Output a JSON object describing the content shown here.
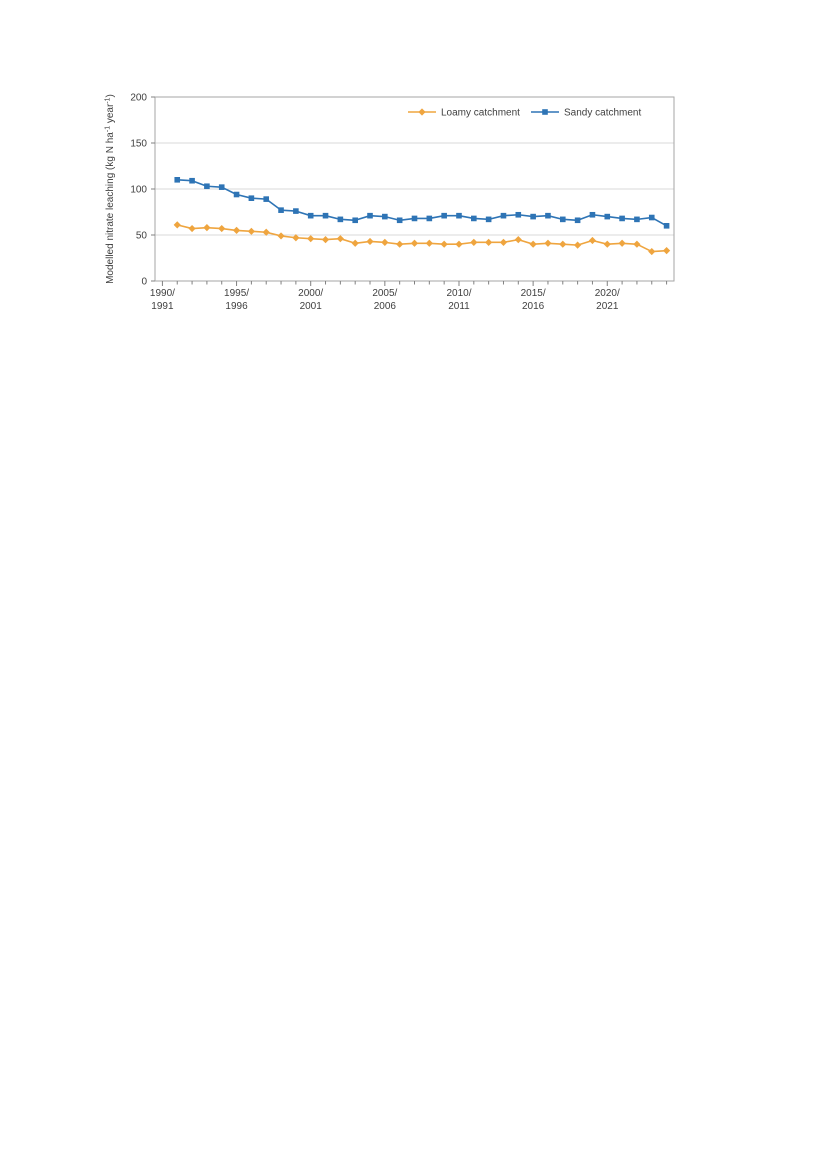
{
  "page": {
    "background": "#ffffff"
  },
  "chart_data": {
    "type": "line",
    "title": "",
    "ylabel": "Modelled nitrate leaching (kg N ha⁻¹ year⁻¹)",
    "xlabel": "",
    "ylim": [
      0,
      200
    ],
    "yticks": [
      0,
      50,
      100,
      150,
      200
    ],
    "gridlines_y": [
      50,
      100,
      150
    ],
    "grid": "horizontal-only",
    "legend_position": "inside-top-center-right",
    "x_axis": {
      "domain_years": [
        1989.5,
        2024.5
      ],
      "minor_ticks_start": 1990,
      "minor_ticks_end": 2024,
      "major_ticks": [
        {
          "year": 1990,
          "label_line1": "1990/",
          "label_line2": "1991"
        },
        {
          "year": 1995,
          "label_line1": "1995/",
          "label_line2": "1996"
        },
        {
          "year": 2000,
          "label_line1": "2000/",
          "label_line2": "2001"
        },
        {
          "year": 2005,
          "label_line1": "2005/",
          "label_line2": "2006"
        },
        {
          "year": 2010,
          "label_line1": "2010/",
          "label_line2": "2011"
        },
        {
          "year": 2015,
          "label_line1": "2015/",
          "label_line2": "2016"
        },
        {
          "year": 2020,
          "label_line1": "2020/",
          "label_line2": "2021"
        }
      ]
    },
    "x_plot_years_start": 1991,
    "seasons": [
      "1990/91",
      "1991/92",
      "1992/93",
      "1993/94",
      "1994/95",
      "1995/96",
      "1996/97",
      "1997/98",
      "1998/99",
      "1999/00",
      "2000/01",
      "2001/02",
      "2002/03",
      "2003/04",
      "2004/05",
      "2005/06",
      "2006/07",
      "2007/08",
      "2008/09",
      "2009/10",
      "2010/11",
      "2011/12",
      "2012/13",
      "2013/14",
      "2014/15",
      "2015/16",
      "2016/17",
      "2017/18",
      "2018/19",
      "2019/20",
      "2020/21",
      "2021/22",
      "2022/23",
      "2023/24"
    ],
    "series": [
      {
        "name": "Loamy catchment",
        "color": "#EFA53F",
        "marker": "diamond",
        "values": [
          61,
          57,
          58,
          57,
          55,
          54,
          53,
          49,
          47,
          46,
          45,
          46,
          41,
          43,
          42,
          40,
          41,
          41,
          40,
          40,
          42,
          42,
          42,
          45,
          40,
          41,
          40,
          39,
          44,
          40,
          41,
          40,
          32,
          33
        ]
      },
      {
        "name": "Sandy catchment",
        "color": "#2E74B5",
        "marker": "square",
        "values": [
          110,
          109,
          103,
          102,
          94,
          90,
          89,
          77,
          76,
          71,
          71,
          67,
          66,
          71,
          70,
          66,
          68,
          68,
          71,
          71,
          68,
          67,
          71,
          72,
          70,
          71,
          67,
          66,
          72,
          70,
          68,
          67,
          69,
          60
        ]
      }
    ]
  },
  "colors": {
    "grid": "#D9D9D9",
    "axis_border": "#A6A6A6",
    "tick": "#808080",
    "text": "#404040",
    "plot_background": "#ffffff"
  }
}
